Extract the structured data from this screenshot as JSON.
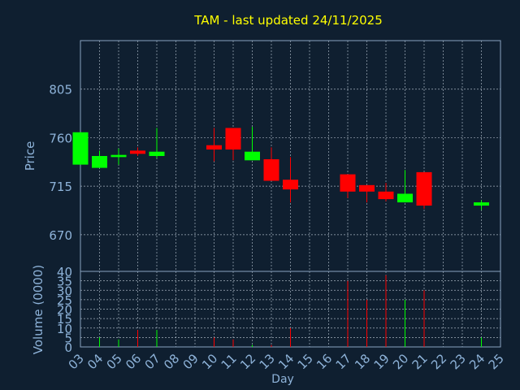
{
  "colors": {
    "background": "#0f1f30",
    "frame": "#8aa3bf",
    "grid": "#c8d4e0",
    "title": "#ffff00",
    "axis_text": "#8eb3d9",
    "up": "#00ff00",
    "down": "#ff0000"
  },
  "chart_data": [
    {
      "type": "candlestick",
      "title": "TAM - last updated 24/11/2025",
      "ylabel": "Price",
      "xlabel": "",
      "ylim": [
        636,
        850
      ],
      "yticks": [
        "670",
        "715",
        "760",
        "805"
      ],
      "grid": true,
      "x_dates": [
        "03",
        "04",
        "05",
        "06",
        "07",
        "08",
        "09",
        "10",
        "11",
        "12",
        "13",
        "14",
        "15",
        "16",
        "17",
        "18",
        "19",
        "20",
        "21",
        "22",
        "23",
        "24",
        "25"
      ],
      "candles": [
        {
          "x": "03",
          "open": 735,
          "high": 765,
          "low": 735,
          "close": 765
        },
        {
          "x": "04",
          "open": 732,
          "high": 748,
          "low": 732,
          "close": 743
        },
        {
          "x": "05",
          "open": 742,
          "high": 750,
          "low": 735,
          "close": 744
        },
        {
          "x": "06",
          "open": 748,
          "high": 751,
          "low": 743,
          "close": 745
        },
        {
          "x": "07",
          "open": 743,
          "high": 769,
          "low": 741,
          "close": 747
        },
        {
          "x": "10",
          "open": 753,
          "high": 769,
          "low": 738,
          "close": 749
        },
        {
          "x": "11",
          "open": 769,
          "high": 769,
          "low": 739,
          "close": 749
        },
        {
          "x": "12",
          "open": 739,
          "high": 770,
          "low": 739,
          "close": 747
        },
        {
          "x": "13",
          "open": 740,
          "high": 751,
          "low": 720,
          "close": 720
        },
        {
          "x": "14",
          "open": 721,
          "high": 742,
          "low": 700,
          "close": 712
        },
        {
          "x": "17",
          "open": 726,
          "high": 726,
          "low": 704,
          "close": 710
        },
        {
          "x": "18",
          "open": 716,
          "high": 716,
          "low": 700,
          "close": 710
        },
        {
          "x": "19",
          "open": 710,
          "high": 718,
          "low": 701,
          "close": 703
        },
        {
          "x": "20",
          "open": 700,
          "high": 730,
          "low": 700,
          "close": 708
        },
        {
          "x": "21",
          "open": 728,
          "high": 728,
          "low": 694,
          "close": 697
        },
        {
          "x": "24",
          "open": 697,
          "high": 702,
          "low": 693,
          "close": 700
        }
      ]
    },
    {
      "type": "bar",
      "ylabel": "Volume (0000)",
      "xlabel": "Day",
      "ylim": [
        0,
        40
      ],
      "yticks": [
        "0",
        "5",
        "10",
        "15",
        "20",
        "25",
        "30",
        "35",
        "40"
      ],
      "grid": true,
      "categories": [
        "03",
        "04",
        "05",
        "06",
        "07",
        "08",
        "09",
        "10",
        "11",
        "12",
        "13",
        "14",
        "15",
        "16",
        "17",
        "18",
        "19",
        "20",
        "21",
        "22",
        "23",
        "24",
        "25"
      ],
      "volumes": [
        {
          "x": "03",
          "value": 0,
          "dir": "up"
        },
        {
          "x": "04",
          "value": 5,
          "dir": "up"
        },
        {
          "x": "05",
          "value": 4,
          "dir": "up"
        },
        {
          "x": "06",
          "value": 9,
          "dir": "down"
        },
        {
          "x": "07",
          "value": 9,
          "dir": "up"
        },
        {
          "x": "10",
          "value": 5,
          "dir": "down"
        },
        {
          "x": "11",
          "value": 4,
          "dir": "down"
        },
        {
          "x": "12",
          "value": 1,
          "dir": "up"
        },
        {
          "x": "13",
          "value": 1,
          "dir": "down"
        },
        {
          "x": "14",
          "value": 10,
          "dir": "down"
        },
        {
          "x": "17",
          "value": 35,
          "dir": "down"
        },
        {
          "x": "18",
          "value": 25,
          "dir": "down"
        },
        {
          "x": "19",
          "value": 38,
          "dir": "down"
        },
        {
          "x": "20",
          "value": 25,
          "dir": "up"
        },
        {
          "x": "21",
          "value": 30,
          "dir": "down"
        },
        {
          "x": "24",
          "value": 5,
          "dir": "up"
        }
      ]
    }
  ]
}
